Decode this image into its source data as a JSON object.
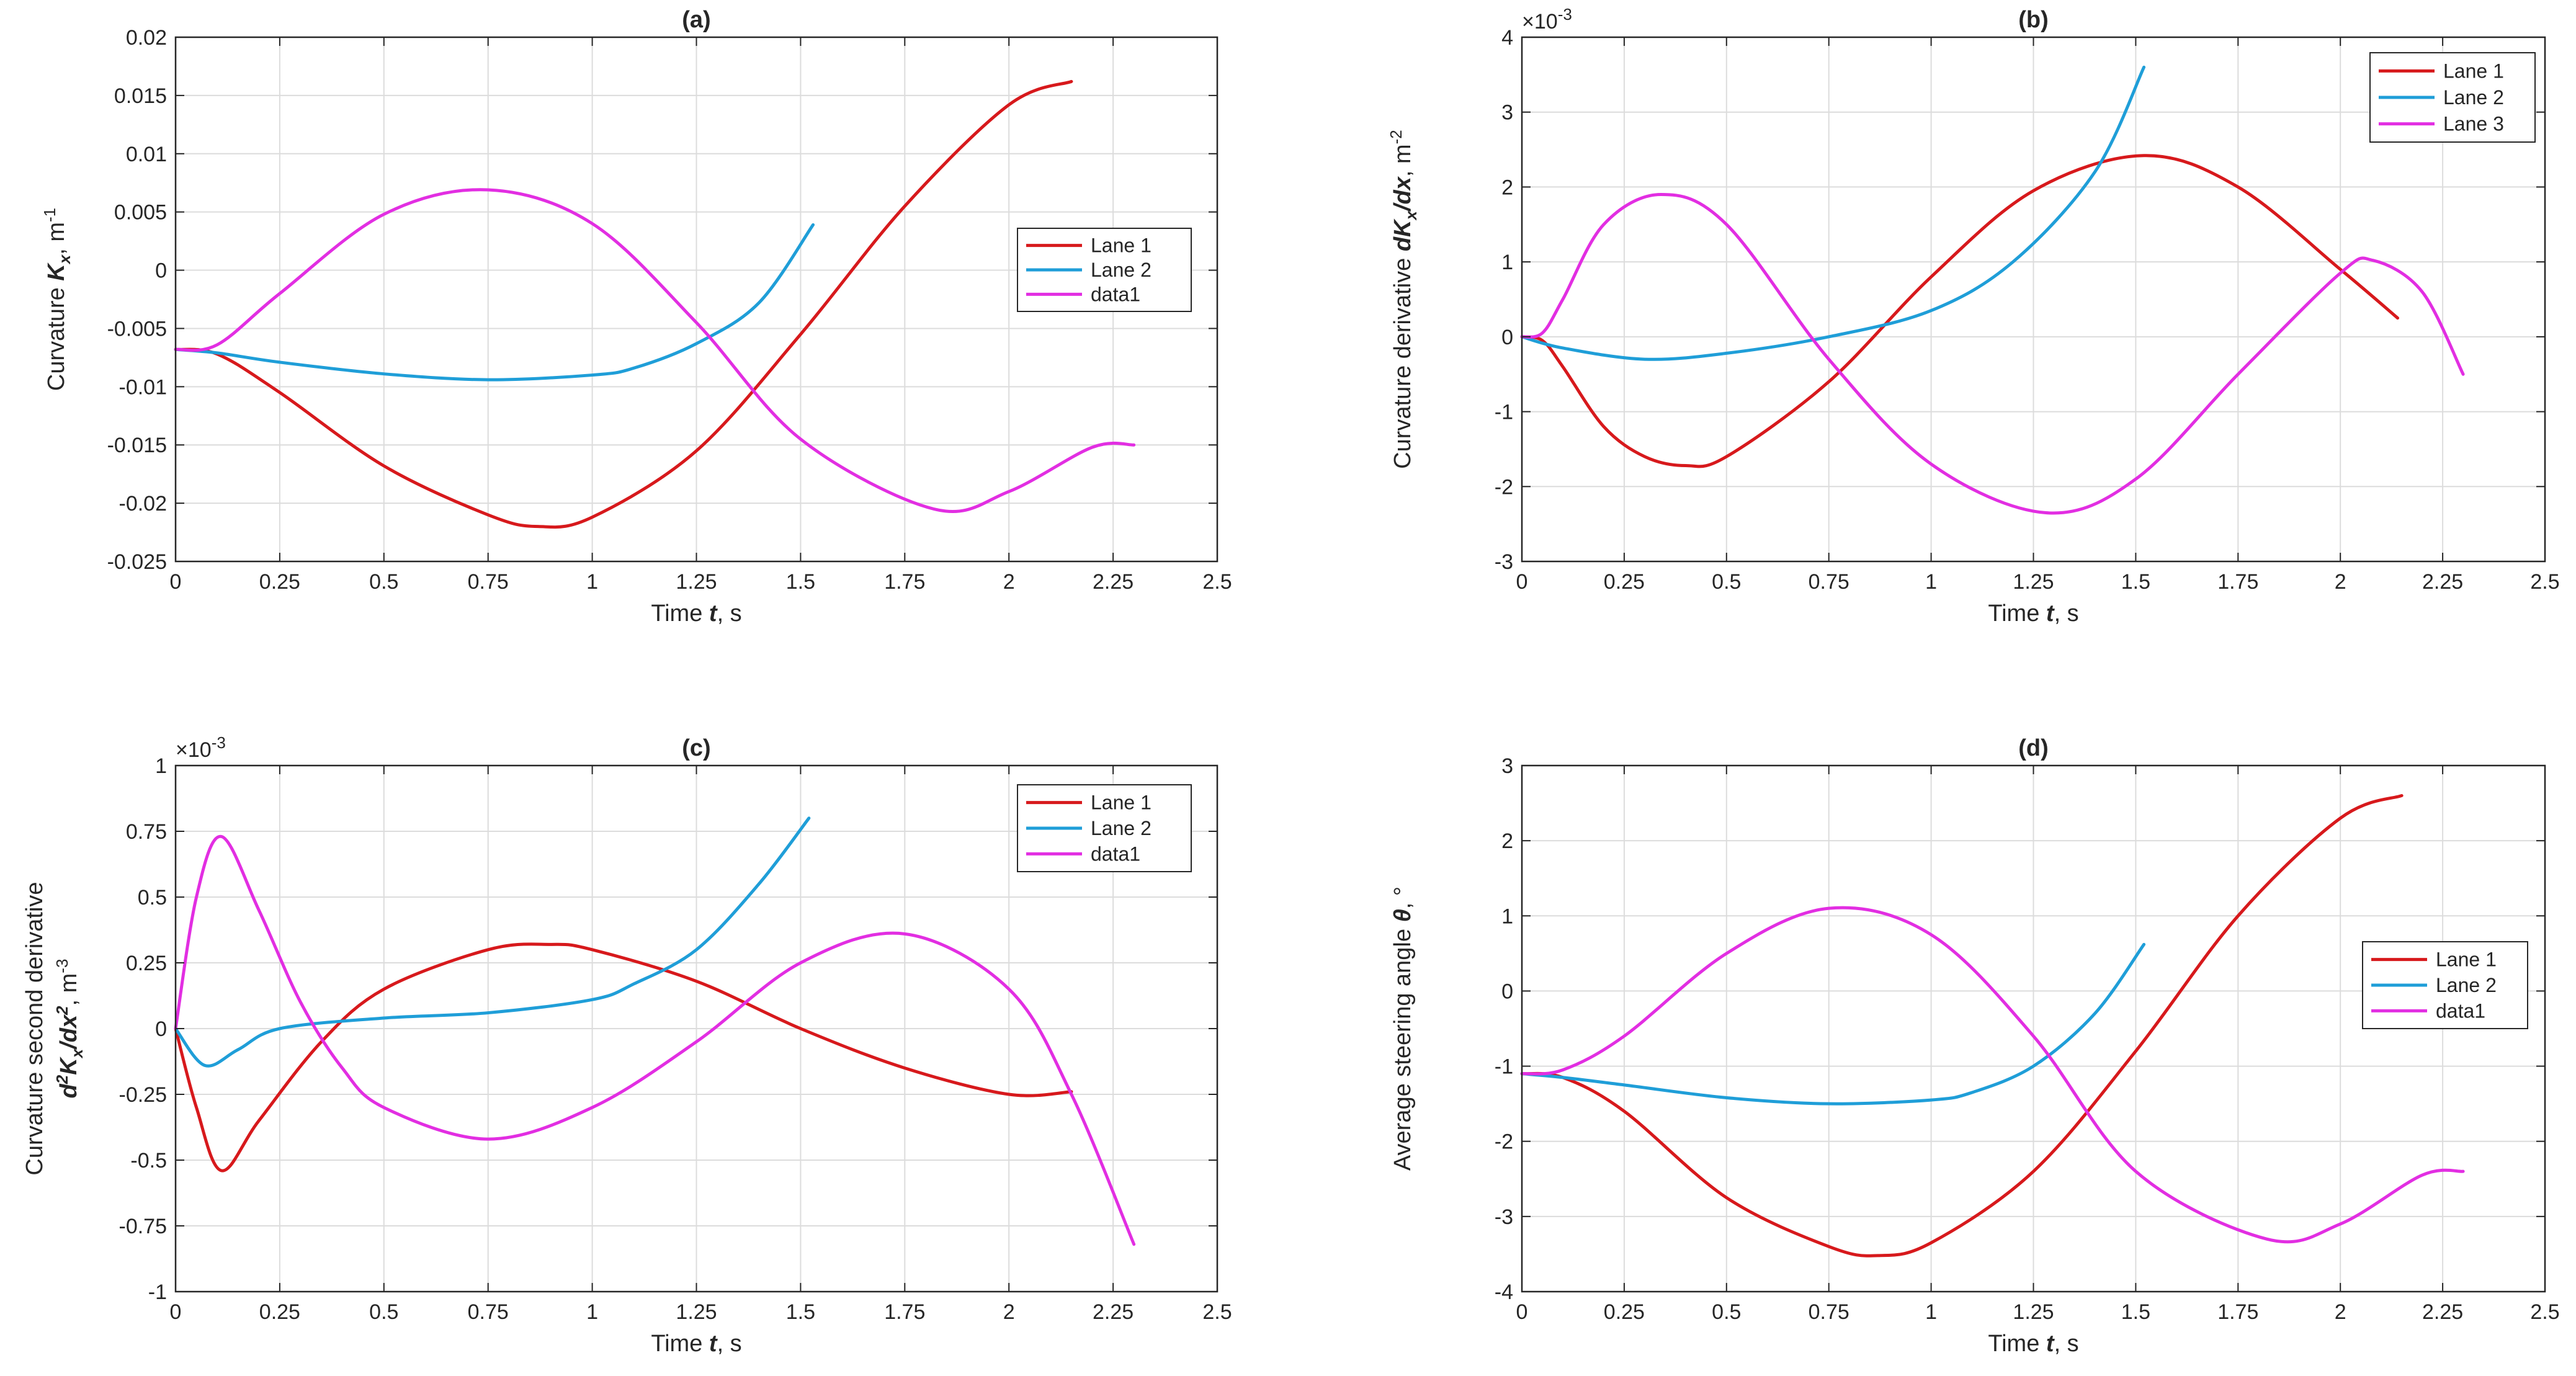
{
  "colors": {
    "lane1": "#d7191c",
    "lane2": "#1f9ed8",
    "lane3": "#e22ee2",
    "grid": "#dcdcdc",
    "axis": "#262626"
  },
  "chart_data": [
    {
      "type": "line",
      "title": "(a)",
      "xlabel": {
        "pre": "Time ",
        "var": "t",
        "post": ", s"
      },
      "ylabel": {
        "pre": "Curvature ",
        "var": "K",
        "sub": "x",
        "post": ", m",
        "sup": "-1"
      },
      "xlim": [
        0,
        2.5
      ],
      "ylim": [
        -0.025,
        0.02
      ],
      "xticks": [
        0,
        0.25,
        0.5,
        0.75,
        1,
        1.25,
        1.5,
        1.75,
        2,
        2.25,
        2.5
      ],
      "xtick_labels": [
        "0",
        "0.25",
        "0.5",
        "0.75",
        "1",
        "1.25",
        "1.5",
        "1.75",
        "2",
        "2.25",
        "2.5"
      ],
      "yticks": [
        -0.025,
        -0.02,
        -0.015,
        -0.01,
        -0.005,
        0,
        0.005,
        0.01,
        0.015,
        0.02
      ],
      "ytick_labels": [
        "-0.025",
        "-0.02",
        "-0.015",
        "-0.01",
        "-0.005",
        "0",
        "0.005",
        "0.01",
        "0.015",
        "0.02"
      ],
      "grid": true,
      "legend": "right",
      "series": [
        {
          "name": "Lane 1",
          "color": "lane1",
          "x": [
            0,
            0.1,
            0.25,
            0.5,
            0.75,
            0.87,
            1.0,
            1.25,
            1.5,
            1.75,
            2.0,
            2.15
          ],
          "y": [
            -0.0068,
            -0.0072,
            -0.0105,
            -0.0168,
            -0.021,
            -0.022,
            -0.0212,
            -0.0155,
            -0.0055,
            0.0055,
            0.0142,
            0.0162
          ]
        },
        {
          "name": "Lane 2",
          "color": "lane2",
          "x": [
            0,
            0.1,
            0.25,
            0.5,
            0.75,
            1.0,
            1.1,
            1.25,
            1.4,
            1.53
          ],
          "y": [
            -0.0068,
            -0.0071,
            -0.0079,
            -0.0089,
            -0.0094,
            -0.009,
            -0.0084,
            -0.0063,
            -0.0028,
            0.0039
          ]
        },
        {
          "name": "data1",
          "color": "lane3",
          "x": [
            0,
            0.1,
            0.25,
            0.5,
            0.75,
            1.0,
            1.25,
            1.5,
            1.82,
            2.0,
            2.2,
            2.3
          ],
          "y": [
            -0.0068,
            -0.0064,
            -0.002,
            0.0048,
            0.0069,
            0.004,
            -0.0045,
            -0.0145,
            -0.0205,
            -0.019,
            -0.0152,
            -0.015
          ]
        }
      ]
    },
    {
      "type": "line",
      "title": "(b)",
      "xlabel": {
        "pre": "Time ",
        "var": "t",
        "post": ", s"
      },
      "ylabel": {
        "pre": "Curvature derivative ",
        "var": "dK",
        "sub": "x",
        "var2": "/dx",
        "post": ", m",
        "sup": "-2"
      },
      "exponent": {
        "base": "×10",
        "exp": "-3"
      },
      "xlim": [
        0,
        2.5
      ],
      "ylim": [
        -3,
        4
      ],
      "xticks": [
        0,
        0.25,
        0.5,
        0.75,
        1,
        1.25,
        1.5,
        1.75,
        2,
        2.25,
        2.5
      ],
      "xtick_labels": [
        "0",
        "0.25",
        "0.5",
        "0.75",
        "1",
        "1.25",
        "1.5",
        "1.75",
        "2",
        "2.25",
        "2.5"
      ],
      "yticks": [
        -3,
        -2,
        -1,
        0,
        1,
        2,
        3,
        4
      ],
      "ytick_labels": [
        "-3",
        "-2",
        "-1",
        "0",
        "1",
        "2",
        "3",
        "4"
      ],
      "grid": true,
      "legend": "top-right",
      "series": [
        {
          "name": "Lane 1",
          "color": "lane1",
          "x": [
            0,
            0.05,
            0.1,
            0.2,
            0.3,
            0.4,
            0.5,
            0.75,
            1.0,
            1.25,
            1.52,
            1.75,
            2.0,
            2.14
          ],
          "y": [
            0,
            -0.05,
            -0.4,
            -1.2,
            -1.6,
            -1.72,
            -1.6,
            -0.6,
            0.8,
            1.95,
            2.42,
            2.0,
            0.9,
            0.25
          ]
        },
        {
          "name": "Lane 2",
          "color": "lane2",
          "x": [
            0,
            0.1,
            0.3,
            0.5,
            0.75,
            1.0,
            1.2,
            1.4,
            1.52
          ],
          "y": [
            0,
            -0.15,
            -0.3,
            -0.22,
            0.0,
            0.35,
            1.0,
            2.2,
            3.6
          ]
        },
        {
          "name": "Lane 3",
          "color": "lane3",
          "x": [
            0,
            0.05,
            0.1,
            0.2,
            0.34,
            0.5,
            0.75,
            1.0,
            1.28,
            1.5,
            1.75,
            2.0,
            2.08,
            2.2,
            2.3
          ],
          "y": [
            0,
            0.05,
            0.5,
            1.5,
            1.9,
            1.5,
            -0.3,
            -1.7,
            -2.35,
            -1.9,
            -0.5,
            0.85,
            1.02,
            0.6,
            -0.5
          ]
        }
      ]
    },
    {
      "type": "line",
      "title": "(c)",
      "xlabel": {
        "pre": "Time ",
        "var": "t",
        "post": ", s"
      },
      "ylabel": {
        "line1": "Curvature second derivative",
        "var": "d",
        "varsup": "2",
        "var2": "K",
        "sub": "x",
        "var3": "/dx",
        "var3sup": "2",
        "post": ", m",
        "sup": "-3"
      },
      "exponent": {
        "base": "×10",
        "exp": "-3"
      },
      "xlim": [
        0,
        2.5
      ],
      "ylim": [
        -1,
        1
      ],
      "xticks": [
        0,
        0.25,
        0.5,
        0.75,
        1,
        1.25,
        1.5,
        1.75,
        2,
        2.25,
        2.5
      ],
      "xtick_labels": [
        "0",
        "0.25",
        "0.5",
        "0.75",
        "1",
        "1.25",
        "1.5",
        "1.75",
        "2",
        "2.25",
        "2.5"
      ],
      "yticks": [
        -1,
        -0.75,
        -0.5,
        -0.25,
        0,
        0.25,
        0.5,
        0.75,
        1
      ],
      "ytick_labels": [
        "-1",
        "-0.75",
        "-0.5",
        "-0.25",
        "0",
        "0.25",
        "0.5",
        "0.75",
        "1"
      ],
      "grid": true,
      "legend": "top-right",
      "series": [
        {
          "name": "Lane 1",
          "color": "lane1",
          "x": [
            0,
            0.05,
            0.11,
            0.2,
            0.35,
            0.5,
            0.75,
            0.9,
            1.0,
            1.25,
            1.5,
            1.75,
            2.0,
            2.15
          ],
          "y": [
            0,
            -0.3,
            -0.54,
            -0.35,
            -0.05,
            0.15,
            0.3,
            0.32,
            0.3,
            0.18,
            0.0,
            -0.15,
            -0.25,
            -0.24
          ]
        },
        {
          "name": "Lane 2",
          "color": "lane2",
          "x": [
            0,
            0.07,
            0.15,
            0.25,
            0.5,
            0.75,
            1.0,
            1.1,
            1.25,
            1.4,
            1.52
          ],
          "y": [
            0,
            -0.14,
            -0.08,
            0.0,
            0.04,
            0.06,
            0.11,
            0.17,
            0.3,
            0.55,
            0.8
          ]
        },
        {
          "name": "data1",
          "color": "lane3",
          "x": [
            0,
            0.05,
            0.11,
            0.2,
            0.3,
            0.4,
            0.5,
            0.75,
            1.0,
            1.25,
            1.5,
            1.75,
            2.0,
            2.15,
            2.3
          ],
          "y": [
            0,
            0.5,
            0.73,
            0.45,
            0.1,
            -0.15,
            -0.3,
            -0.42,
            -0.3,
            -0.05,
            0.25,
            0.36,
            0.15,
            -0.25,
            -0.82
          ]
        }
      ]
    },
    {
      "type": "line",
      "title": "(d)",
      "xlabel": {
        "pre": "Time ",
        "var": "t",
        "post": ", s"
      },
      "ylabel": {
        "pre": "Average steering angle ",
        "var": "θ",
        "post": ", °"
      },
      "xlim": [
        0,
        2.5
      ],
      "ylim": [
        -4,
        3
      ],
      "xticks": [
        0,
        0.25,
        0.5,
        0.75,
        1,
        1.25,
        1.5,
        1.75,
        2,
        2.25,
        2.5
      ],
      "xtick_labels": [
        "0",
        "0.25",
        "0.5",
        "0.75",
        "1",
        "1.25",
        "1.5",
        "1.75",
        "2",
        "2.25",
        "2.5"
      ],
      "yticks": [
        -4,
        -3,
        -2,
        -1,
        0,
        1,
        2,
        3
      ],
      "ytick_labels": [
        "-4",
        "-3",
        "-2",
        "-1",
        "0",
        "1",
        "2",
        "3"
      ],
      "grid": true,
      "legend": "right",
      "series": [
        {
          "name": "Lane 1",
          "color": "lane1",
          "x": [
            0,
            0.1,
            0.25,
            0.5,
            0.75,
            0.87,
            1.0,
            1.25,
            1.5,
            1.75,
            2.0,
            2.15
          ],
          "y": [
            -1.1,
            -1.15,
            -1.6,
            -2.75,
            -3.4,
            -3.52,
            -3.35,
            -2.4,
            -0.8,
            1.0,
            2.3,
            2.6
          ]
        },
        {
          "name": "Lane 2",
          "color": "lane2",
          "x": [
            0,
            0.1,
            0.25,
            0.5,
            0.75,
            1.0,
            1.1,
            1.25,
            1.4,
            1.52
          ],
          "y": [
            -1.1,
            -1.15,
            -1.25,
            -1.42,
            -1.5,
            -1.45,
            -1.35,
            -1.0,
            -0.3,
            0.62
          ]
        },
        {
          "name": "data1",
          "color": "lane3",
          "x": [
            0,
            0.1,
            0.25,
            0.5,
            0.75,
            1.0,
            1.25,
            1.5,
            1.82,
            2.0,
            2.2,
            2.3
          ],
          "y": [
            -1.1,
            -1.05,
            -0.6,
            0.5,
            1.1,
            0.75,
            -0.6,
            -2.4,
            -3.3,
            -3.1,
            -2.45,
            -2.4
          ]
        }
      ]
    }
  ]
}
